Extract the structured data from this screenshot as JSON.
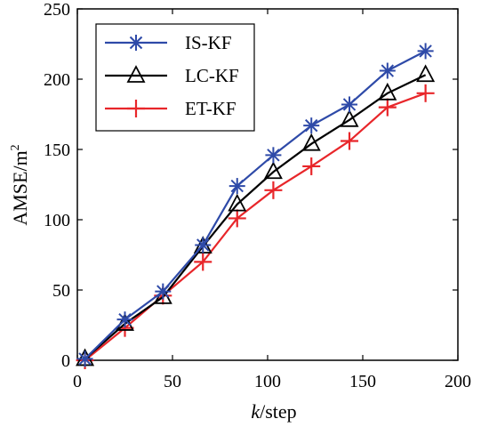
{
  "chart_data": {
    "type": "line",
    "xlabel_italic": "k",
    "xlabel_rest": "/step",
    "ylabel_base": "AMSE/m",
    "ylabel_sup": "2",
    "xlim": [
      0,
      200
    ],
    "ylim": [
      0,
      250
    ],
    "xticks": [
      0,
      50,
      100,
      150,
      200
    ],
    "yticks": [
      0,
      50,
      100,
      150,
      200,
      250
    ],
    "grid": false,
    "legend_position": "top-left",
    "series": [
      {
        "name": "IS-KF",
        "color": "#2e4aa8",
        "marker": "asterisk",
        "x": [
          4,
          25,
          45,
          66,
          84,
          103,
          123,
          143,
          163,
          183
        ],
        "y": [
          1,
          29,
          49,
          82,
          124,
          146,
          167,
          182,
          206,
          220
        ]
      },
      {
        "name": "LC-KF",
        "color": "#000000",
        "marker": "triangle",
        "x": [
          4,
          25,
          45,
          66,
          84,
          103,
          123,
          143,
          163,
          183
        ],
        "y": [
          1,
          26,
          45,
          81,
          111,
          134,
          154,
          171,
          190,
          203
        ]
      },
      {
        "name": "ET-KF",
        "color": "#e8262a",
        "marker": "plus",
        "x": [
          4,
          25,
          45,
          66,
          84,
          103,
          123,
          143,
          163,
          183
        ],
        "y": [
          0,
          23,
          46,
          70,
          101,
          121,
          138,
          156,
          180,
          190
        ]
      }
    ]
  }
}
